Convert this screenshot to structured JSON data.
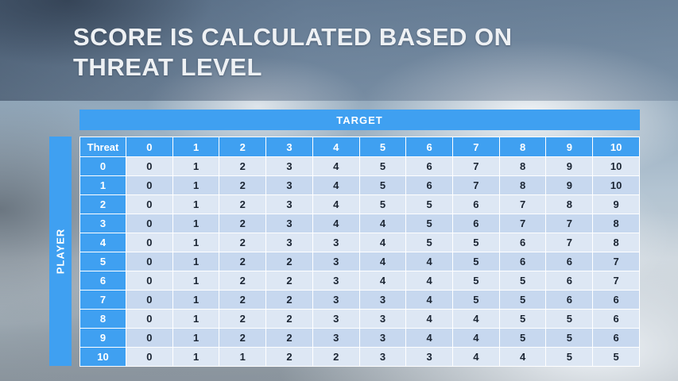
{
  "title": "SCORE IS CALCULATED BASED ON THREAT LEVEL",
  "chart_data": {
    "type": "table",
    "title": "Score is calculated based on threat level",
    "column_group_label": "TARGET",
    "row_group_label": "PLAYER",
    "corner_header": "Threat",
    "column_headers": [
      0,
      1,
      2,
      3,
      4,
      5,
      6,
      7,
      8,
      9,
      10
    ],
    "row_headers": [
      0,
      1,
      2,
      3,
      4,
      5,
      6,
      7,
      8,
      9,
      10
    ],
    "rows": [
      [
        0,
        1,
        2,
        3,
        4,
        5,
        6,
        7,
        8,
        9,
        10
      ],
      [
        0,
        1,
        2,
        3,
        4,
        5,
        6,
        7,
        8,
        9,
        10
      ],
      [
        0,
        1,
        2,
        3,
        4,
        5,
        5,
        6,
        7,
        8,
        9
      ],
      [
        0,
        1,
        2,
        3,
        4,
        4,
        5,
        6,
        7,
        7,
        8
      ],
      [
        0,
        1,
        2,
        3,
        3,
        4,
        5,
        5,
        6,
        7,
        8
      ],
      [
        0,
        1,
        2,
        2,
        3,
        4,
        4,
        5,
        6,
        6,
        7
      ],
      [
        0,
        1,
        2,
        2,
        3,
        4,
        4,
        5,
        5,
        6,
        7
      ],
      [
        0,
        1,
        2,
        2,
        3,
        3,
        4,
        5,
        5,
        6,
        6
      ],
      [
        0,
        1,
        2,
        2,
        3,
        3,
        4,
        4,
        5,
        5,
        6
      ],
      [
        0,
        1,
        2,
        2,
        3,
        3,
        4,
        4,
        5,
        5,
        6
      ],
      [
        0,
        1,
        1,
        2,
        2,
        3,
        3,
        4,
        4,
        5,
        5
      ]
    ]
  },
  "colors": {
    "header_blue": "#3fa0f1",
    "row_light": "#dde7f4",
    "row_dark": "#c7d8ef",
    "cell_text": "#1b2533",
    "title_text": "#eef1f4"
  }
}
